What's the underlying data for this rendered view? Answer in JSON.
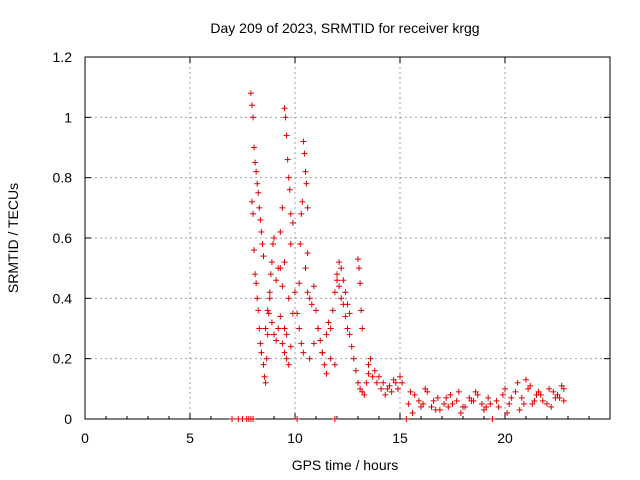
{
  "chart_data": {
    "type": "scatter",
    "title": "Day 209 of 2023, SRMTID for receiver krgg",
    "xlabel": "GPS time / hours",
    "ylabel": "SRMTID / TECUs",
    "xlim": [
      0,
      25
    ],
    "ylim": [
      0,
      1.2
    ],
    "xticks": [
      0,
      5,
      10,
      15,
      20
    ],
    "xtick_labels": [
      "0",
      "5",
      "10",
      "15",
      "20"
    ],
    "yticks": [
      0,
      0.2,
      0.4,
      0.6,
      0.8,
      1.0,
      1.2
    ],
    "ytick_labels": [
      "0",
      "0.2",
      "0.4",
      "0.6",
      "0.8",
      "1",
      "1.2"
    ],
    "grid": true,
    "marker": "+",
    "series": [
      {
        "name": "krgg",
        "color": "#e00000",
        "x": [
          7.0,
          7.3,
          7.5,
          7.7,
          7.8,
          7.9,
          8.0,
          10.1,
          11.9,
          15.3,
          19.4,
          7.9,
          7.95,
          8.0,
          8.05,
          8.1,
          8.15,
          8.2,
          8.25,
          8.3,
          8.35,
          8.4,
          8.45,
          8.5,
          7.95,
          8.0,
          8.05,
          8.1,
          8.15,
          8.2,
          8.25,
          8.3,
          8.35,
          8.4,
          8.5,
          8.55,
          8.6,
          8.65,
          8.7,
          8.75,
          8.8,
          8.85,
          8.9,
          8.95,
          9.0,
          8.6,
          8.7,
          8.8,
          8.9,
          9.0,
          9.1,
          9.2,
          9.3,
          9.4,
          9.5,
          9.1,
          9.2,
          9.3,
          9.4,
          9.5,
          9.6,
          9.7,
          9.8,
          9.9,
          9.5,
          9.55,
          9.6,
          9.65,
          9.7,
          9.75,
          9.8,
          9.3,
          9.4,
          9.5,
          9.6,
          9.7,
          9.8,
          9.9,
          10.0,
          10.1,
          10.2,
          10.25,
          10.3,
          10.35,
          10.4,
          10.45,
          10.5,
          10.55,
          10.6,
          10.2,
          10.3,
          10.4,
          10.5,
          10.6,
          10.6,
          10.7,
          10.8,
          10.9,
          11.0,
          11.1,
          11.2,
          11.3,
          11.4,
          11.5,
          10.7,
          10.9,
          11.1,
          11.3,
          11.5,
          11.7,
          11.9,
          11.6,
          11.7,
          11.8,
          11.9,
          12.0,
          12.1,
          12.2,
          12.3,
          12.4,
          12.5,
          12.0,
          12.1,
          12.2,
          12.3,
          12.4,
          12.5,
          12.6,
          12.6,
          12.7,
          12.8,
          12.9,
          13.0,
          13.1,
          13.2,
          13.3,
          13.4,
          13.5,
          13.0,
          13.05,
          13.1,
          13.15,
          13.2,
          13.5,
          13.7,
          13.9,
          14.1,
          14.3,
          14.5,
          14.7,
          14.9,
          15.1,
          13.6,
          13.8,
          14.0,
          14.2,
          14.4,
          14.6,
          14.8,
          15.0,
          15.4,
          15.7,
          16.0,
          16.3,
          16.6,
          16.9,
          17.2,
          17.5,
          17.8,
          18.1,
          18.4,
          18.7,
          19.0,
          19.3,
          15.5,
          15.9,
          16.2,
          16.5,
          16.8,
          17.1,
          17.4,
          17.7,
          18.0,
          18.3,
          18.6,
          18.9,
          19.2,
          15.6,
          16.1,
          16.7,
          17.3,
          17.9,
          18.5,
          19.1,
          19.6,
          19.9,
          20.2,
          20.5,
          20.8,
          21.1,
          21.4,
          21.7,
          22.0,
          22.3,
          22.6,
          22.8,
          19.7,
          20.0,
          20.3,
          20.6,
          20.9,
          21.2,
          21.5,
          21.8,
          22.1,
          22.4,
          22.7,
          20.1,
          20.7,
          21.0,
          21.3,
          21.6,
          22.2,
          22.5,
          22.8
        ],
        "y": [
          0,
          0,
          0,
          0,
          0,
          0,
          0,
          0,
          0,
          0,
          0,
          1.08,
          1.04,
          1.0,
          0.9,
          0.85,
          0.82,
          0.78,
          0.75,
          0.7,
          0.66,
          0.62,
          0.58,
          0.54,
          0.72,
          0.68,
          0.56,
          0.48,
          0.45,
          0.4,
          0.36,
          0.3,
          0.25,
          0.22,
          0.18,
          0.14,
          0.12,
          0.2,
          0.28,
          0.35,
          0.42,
          0.48,
          0.52,
          0.58,
          0.6,
          0.3,
          0.36,
          0.4,
          0.32,
          0.28,
          0.46,
          0.5,
          0.62,
          0.7,
          0.52,
          0.26,
          0.3,
          0.34,
          0.25,
          0.22,
          0.28,
          0.4,
          0.58,
          0.65,
          1.03,
          1.0,
          0.94,
          0.86,
          0.8,
          0.76,
          0.68,
          0.5,
          0.44,
          0.3,
          0.2,
          0.18,
          0.24,
          0.35,
          0.42,
          0.35,
          0.45,
          0.58,
          0.68,
          0.72,
          0.92,
          0.88,
          0.82,
          0.78,
          0.7,
          0.3,
          0.25,
          0.22,
          0.5,
          0.55,
          0.42,
          0.4,
          0.38,
          0.44,
          0.36,
          0.3,
          0.26,
          0.22,
          0.18,
          0.15,
          0.2,
          0.25,
          0.3,
          0.22,
          0.28,
          0.2,
          0.18,
          0.32,
          0.3,
          0.36,
          0.42,
          0.46,
          0.44,
          0.4,
          0.38,
          0.34,
          0.3,
          0.48,
          0.52,
          0.5,
          0.46,
          0.42,
          0.38,
          0.35,
          0.28,
          0.24,
          0.2,
          0.16,
          0.12,
          0.1,
          0.09,
          0.08,
          0.12,
          0.15,
          0.53,
          0.5,
          0.45,
          0.36,
          0.3,
          0.18,
          0.14,
          0.12,
          0.1,
          0.08,
          0.11,
          0.13,
          0.1,
          0.12,
          0.2,
          0.16,
          0.14,
          0.12,
          0.1,
          0.09,
          0.12,
          0.14,
          0.05,
          0.08,
          0.04,
          0.09,
          0.06,
          0.03,
          0.07,
          0.05,
          0.09,
          0.04,
          0.06,
          0.08,
          0.03,
          0.05,
          0.09,
          0.06,
          0.1,
          0.04,
          0.07,
          0.05,
          0.08,
          0.06,
          0.04,
          0.07,
          0.09,
          0.05,
          0.07,
          0.02,
          0.05,
          0.03,
          0.04,
          0.02,
          0.06,
          0.04,
          0.06,
          0.08,
          0.05,
          0.09,
          0.07,
          0.1,
          0.06,
          0.08,
          0.05,
          0.09,
          0.07,
          0.1,
          0.04,
          0.1,
          0.07,
          0.12,
          0.05,
          0.11,
          0.08,
          0.06,
          0.1,
          0.07,
          0.11,
          0.02,
          0.03,
          0.13,
          0.05,
          0.09,
          0.04,
          0.08,
          0.06
        ]
      }
    ]
  }
}
